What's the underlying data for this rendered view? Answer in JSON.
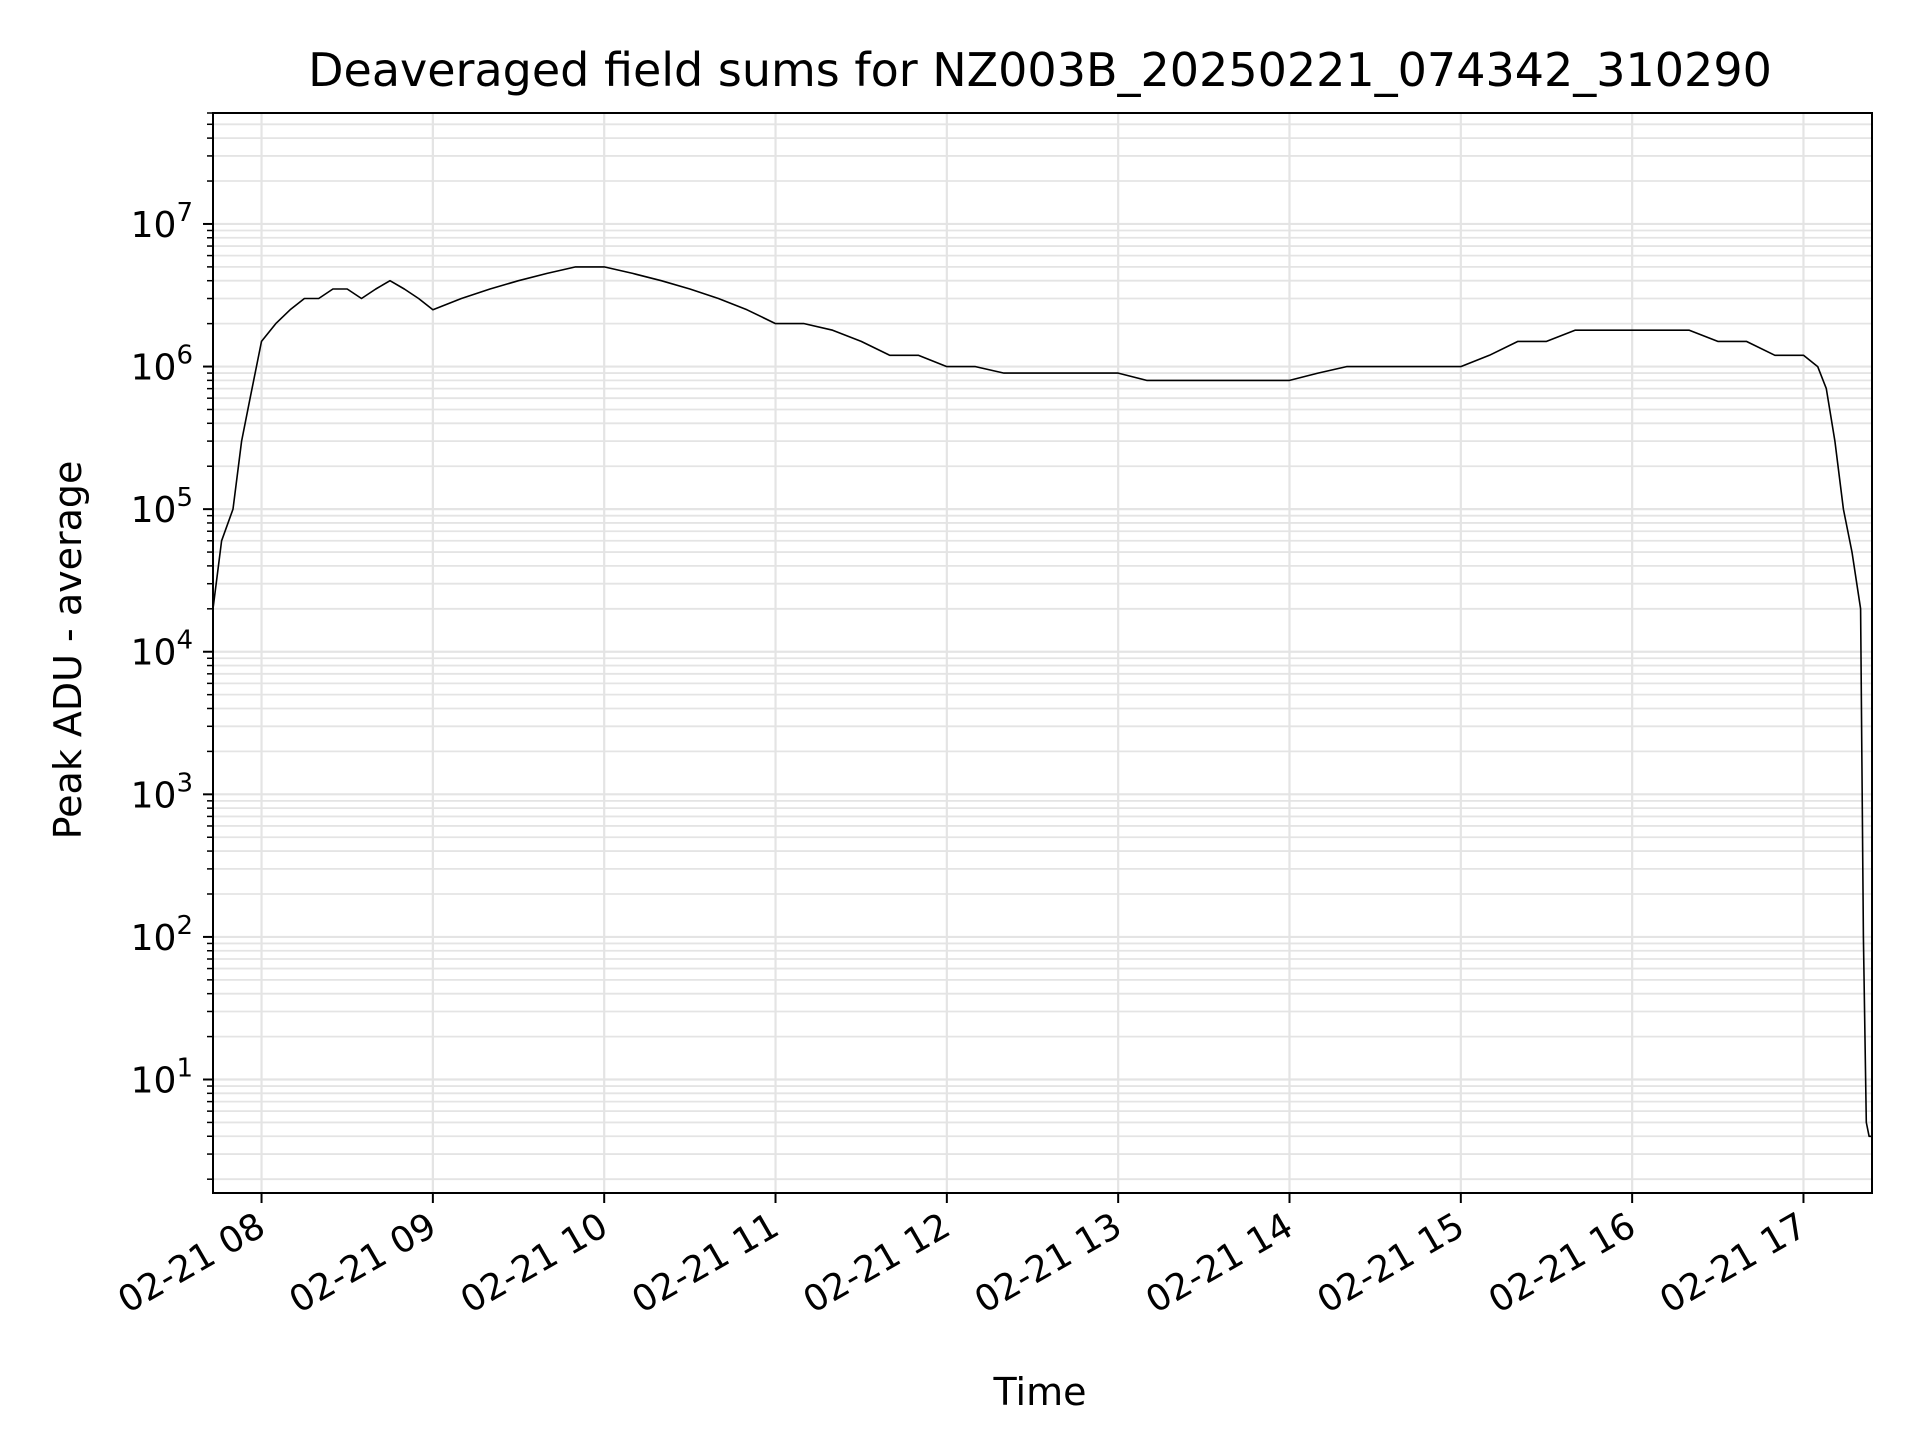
{
  "chart_data": {
    "type": "line",
    "title": "Deaveraged field sums for NZ003B_20250221_074342_310290",
    "xlabel": "Time",
    "ylabel": "Peak ADU - average",
    "yscale": "log",
    "ylim": [
      1.6,
      60000000
    ],
    "xlim": [
      "02-21 07:43",
      "02-21 17:24"
    ],
    "grid": "major and minor",
    "line_color": "#000000",
    "x_tick_labels": [
      "02-21 08",
      "02-21 09",
      "02-21 10",
      "02-21 11",
      "02-21 12",
      "02-21 13",
      "02-21 14",
      "02-21 15",
      "02-21 16",
      "02-21 17"
    ],
    "y_tick_labels": [
      {
        "base": "10",
        "exp": "1"
      },
      {
        "base": "10",
        "exp": "2"
      },
      {
        "base": "10",
        "exp": "3"
      },
      {
        "base": "10",
        "exp": "4"
      },
      {
        "base": "10",
        "exp": "5"
      },
      {
        "base": "10",
        "exp": "6"
      },
      {
        "base": "10",
        "exp": "7"
      }
    ],
    "series": [
      {
        "x": [
          "07:43",
          "07:46",
          "07:50",
          "07:53",
          "07:56",
          "08:00",
          "08:05",
          "08:10",
          "08:15",
          "08:20",
          "08:25",
          "08:30",
          "08:35",
          "08:40",
          "08:45",
          "08:50",
          "08:55",
          "09:00",
          "09:10",
          "09:20",
          "09:30",
          "09:40",
          "09:50",
          "10:00",
          "10:10",
          "10:20",
          "10:30",
          "10:40",
          "10:50",
          "11:00",
          "11:10",
          "11:20",
          "11:30",
          "11:40",
          "11:50",
          "12:00",
          "12:10",
          "12:20",
          "12:30",
          "12:40",
          "12:50",
          "13:00",
          "13:10",
          "13:20",
          "13:30",
          "13:40",
          "13:50",
          "14:00",
          "14:10",
          "14:20",
          "14:30",
          "14:40",
          "14:50",
          "15:00",
          "15:10",
          "15:20",
          "15:30",
          "15:40",
          "15:50",
          "16:00",
          "16:10",
          "16:20",
          "16:30",
          "16:40",
          "16:50",
          "17:00",
          "17:05",
          "17:08",
          "17:11",
          "17:14",
          "17:17",
          "17:20",
          "17:21",
          "17:22",
          "17:23",
          "17:24"
        ],
        "y": [
          20000,
          60000,
          100000,
          300000,
          600000,
          1500000,
          2000000,
          2500000,
          3000000,
          3000000,
          3500000,
          3500000,
          3000000,
          3500000,
          4000000,
          3500000,
          3000000,
          2500000,
          3000000,
          3500000,
          4000000,
          4500000,
          5000000,
          5000000,
          4500000,
          4000000,
          3500000,
          3000000,
          2500000,
          2000000,
          2000000,
          1800000,
          1500000,
          1200000,
          1200000,
          1000000,
          1000000,
          900000,
          900000,
          900000,
          900000,
          900000,
          800000,
          800000,
          800000,
          800000,
          800000,
          800000,
          900000,
          1000000,
          1000000,
          1000000,
          1000000,
          1000000,
          1200000,
          1500000,
          1500000,
          1800000,
          1800000,
          1800000,
          1800000,
          1800000,
          1500000,
          1500000,
          1200000,
          1200000,
          1000000,
          700000,
          300000,
          100000,
          50000,
          20000,
          100,
          5,
          4,
          4
        ]
      }
    ]
  }
}
